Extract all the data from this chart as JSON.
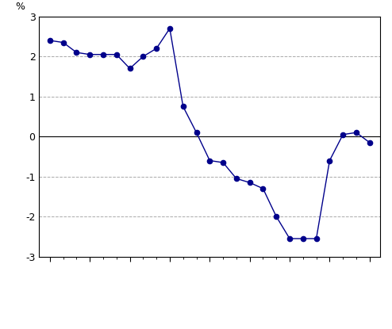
{
  "y": [
    2.4,
    2.35,
    2.1,
    2.05,
    2.05,
    2.05,
    1.7,
    2.0,
    2.2,
    2.7,
    0.75,
    0.1,
    -0.6,
    -0.65,
    -1.05,
    -1.15,
    -1.3,
    -2.0,
    -2.55,
    -2.55,
    -2.55,
    -0.6,
    0.05,
    0.1,
    -0.15
  ],
  "ylim": [
    -3,
    3
  ],
  "yticks": [
    -3,
    -2,
    -1,
    0,
    1,
    2,
    3
  ],
  "ylabel": "%",
  "line_color": "#00008B",
  "marker_color": "#00008B",
  "grid_color": "#aaaaaa",
  "axis_color": "#000000",
  "tick_positions": [
    0,
    3,
    6,
    9,
    12,
    15,
    18,
    21,
    24
  ],
  "figsize": [
    4.94,
    4.15
  ],
  "dpi": 100
}
